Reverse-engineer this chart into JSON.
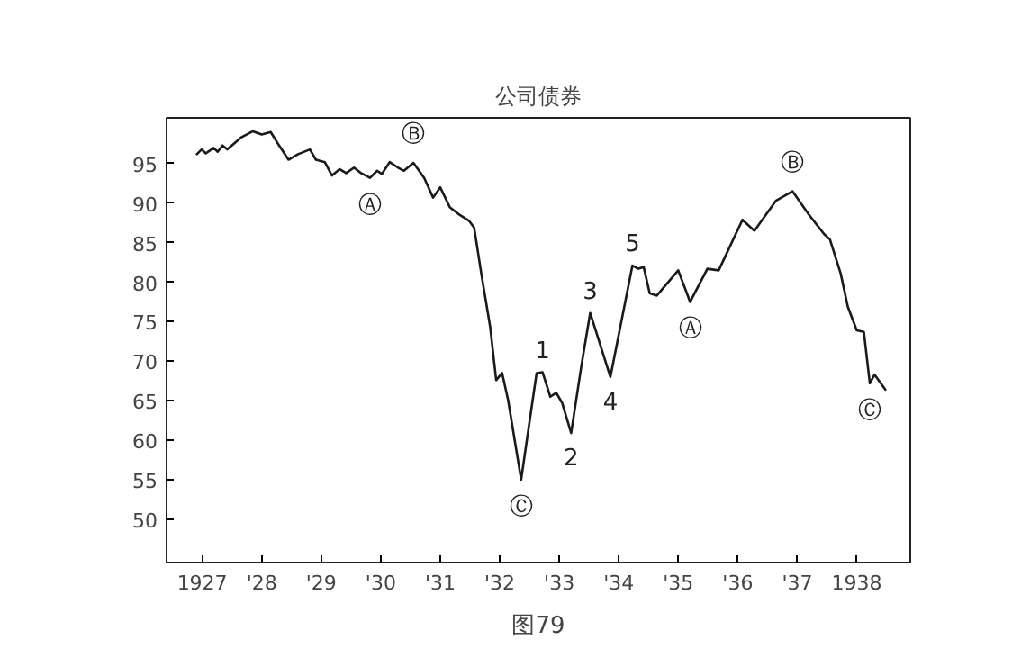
{
  "chart_data": {
    "type": "line",
    "title": "公司债券",
    "x": [
      1926.91,
      1926.99,
      1927.06,
      1927.19,
      1927.26,
      1927.34,
      1927.42,
      1927.65,
      1927.85,
      1928.0,
      1928.15,
      1928.3,
      1928.45,
      1928.61,
      1928.81,
      1928.91,
      1929.06,
      1929.18,
      1929.31,
      1929.42,
      1929.55,
      1929.67,
      1929.82,
      1929.94,
      1930.02,
      1930.15,
      1930.29,
      1930.39,
      1930.55,
      1930.73,
      1930.88,
      1931.0,
      1931.16,
      1931.33,
      1931.48,
      1931.57,
      1931.69,
      1931.84,
      1931.94,
      1932.04,
      1932.14,
      1932.36,
      1932.49,
      1932.62,
      1932.72,
      1932.85,
      1932.95,
      1933.05,
      1933.2,
      1933.37,
      1933.52,
      1933.86,
      1934.23,
      1934.33,
      1934.42,
      1934.52,
      1934.64,
      1935.0,
      1935.2,
      1935.49,
      1935.68,
      1936.08,
      1936.28,
      1936.64,
      1936.92,
      1937.19,
      1937.45,
      1937.55,
      1937.73,
      1937.85,
      1938.0,
      1938.12,
      1938.22,
      1938.3,
      1938.48
    ],
    "series": [
      {
        "color": "#1a1a1a",
        "values": [
          96.2,
          96.8,
          96.3,
          97.0,
          96.5,
          97.3,
          96.8,
          98.3,
          99.1,
          98.7,
          99.0,
          97.2,
          95.5,
          96.2,
          96.8,
          95.5,
          95.2,
          93.5,
          94.3,
          93.8,
          94.5,
          93.8,
          93.2,
          94.1,
          93.7,
          95.2,
          94.5,
          94.1,
          95.1,
          93.2,
          90.7,
          92.0,
          89.5,
          88.5,
          87.8,
          86.9,
          81.1,
          74.3,
          67.6,
          68.5,
          65.1,
          55.0,
          61.8,
          68.5,
          68.6,
          65.5,
          66.0,
          64.7,
          60.9,
          69.3,
          76.1,
          68.0,
          82.1,
          81.7,
          81.9,
          78.6,
          78.3,
          81.5,
          77.5,
          81.7,
          81.5,
          87.9,
          86.5,
          90.3,
          91.5,
          88.6,
          86.1,
          85.4,
          81.1,
          76.9,
          73.9,
          73.7,
          67.2,
          68.3,
          66.4
        ]
      }
    ],
    "xlim": [
      1926.4,
      1938.9
    ],
    "ylim": [
      44.5,
      100.8
    ],
    "xticks": [
      {
        "value": 1927,
        "label": "1927"
      },
      {
        "value": 1928,
        "label": "'28"
      },
      {
        "value": 1929,
        "label": "'29"
      },
      {
        "value": 1930,
        "label": "'30"
      },
      {
        "value": 1931,
        "label": "'31"
      },
      {
        "value": 1932,
        "label": "'32"
      },
      {
        "value": 1933,
        "label": "'33"
      },
      {
        "value": 1934,
        "label": "'34"
      },
      {
        "value": 1935,
        "label": "'35"
      },
      {
        "value": 1936,
        "label": "'36"
      },
      {
        "value": 1937,
        "label": "'37"
      },
      {
        "value": 1938,
        "label": "1938"
      }
    ],
    "yticks": [
      50,
      55,
      60,
      65,
      70,
      75,
      80,
      85,
      90,
      95
    ],
    "grid": false,
    "marker": "none",
    "line_style": "solid",
    "annotations": [
      {
        "text": "Ⓐ",
        "x": 1929.82,
        "y": 93.2
      },
      {
        "text": "Ⓑ",
        "x": 1930.55,
        "y": 95.1
      },
      {
        "text": "Ⓒ",
        "x": 1932.36,
        "y": 55.0
      },
      {
        "text": "1",
        "x": 1932.72,
        "y": 68.6
      },
      {
        "text": "2",
        "x": 1933.2,
        "y": 60.9
      },
      {
        "text": "3",
        "x": 1933.52,
        "y": 76.1
      },
      {
        "text": "4",
        "x": 1933.86,
        "y": 68.0
      },
      {
        "text": "5",
        "x": 1934.23,
        "y": 82.1
      },
      {
        "text": "Ⓐ",
        "x": 1935.2,
        "y": 77.5
      },
      {
        "text": "Ⓑ",
        "x": 1936.92,
        "y": 91.5
      },
      {
        "text": "Ⓒ",
        "x": 1938.22,
        "y": 67.2
      },
      "图79"
    ]
  }
}
